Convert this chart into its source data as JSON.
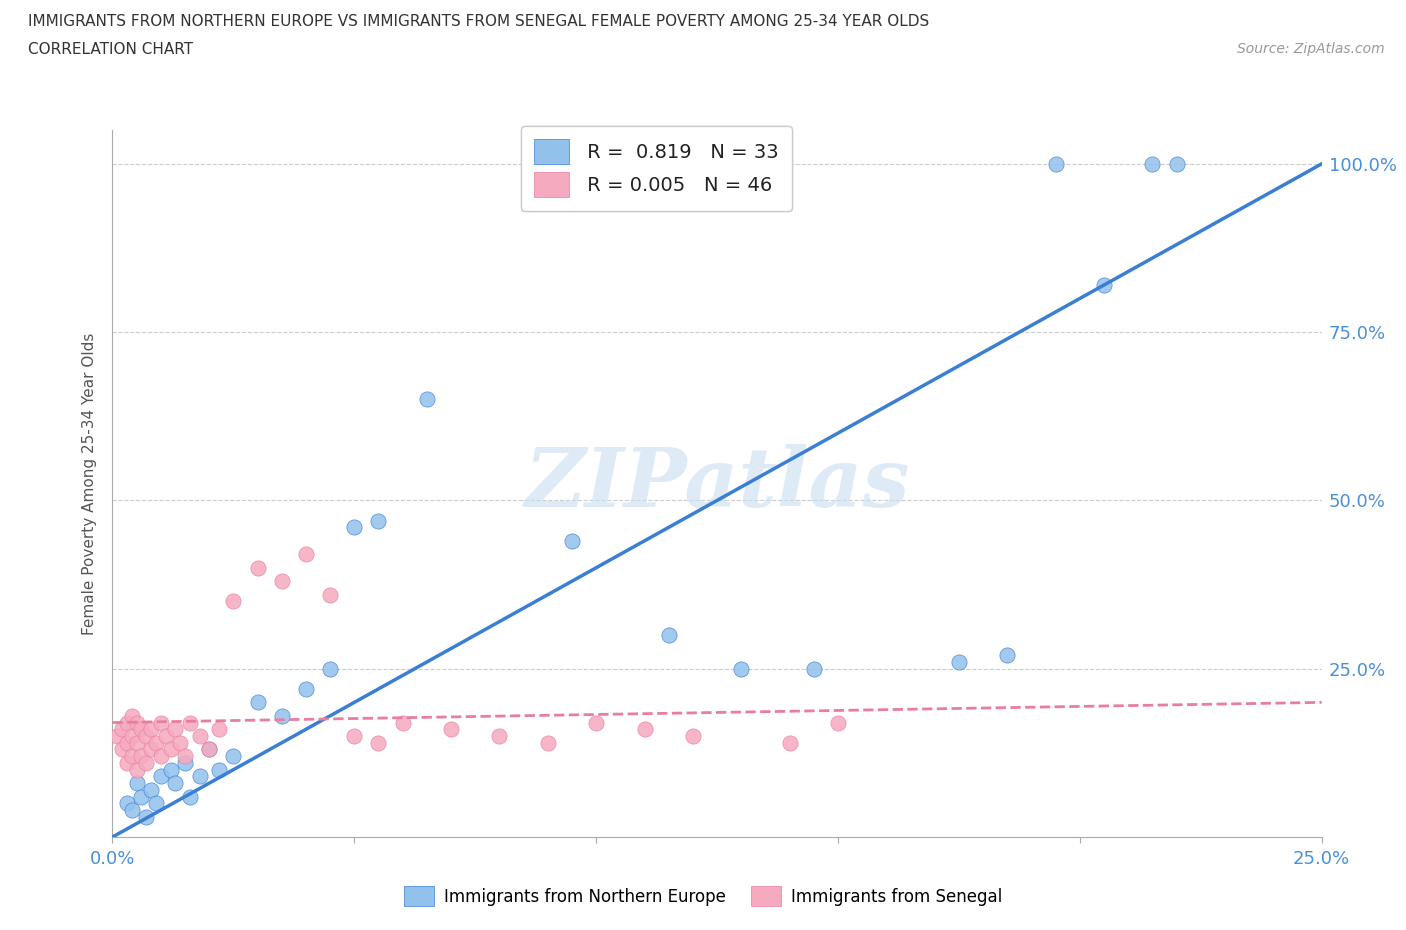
{
  "title_line1": "IMMIGRANTS FROM NORTHERN EUROPE VS IMMIGRANTS FROM SENEGAL FEMALE POVERTY AMONG 25-34 YEAR OLDS",
  "title_line2": "CORRELATION CHART",
  "source_text": "Source: ZipAtlas.com",
  "ylabel": "Female Poverty Among 25-34 Year Olds",
  "xlim": [
    0.0,
    0.25
  ],
  "ylim": [
    0.0,
    1.05
  ],
  "x_tick_positions": [
    0.0,
    0.05,
    0.1,
    0.15,
    0.2,
    0.25
  ],
  "x_tick_labels": [
    "0.0%",
    "",
    "",
    "",
    "",
    "25.0%"
  ],
  "y_tick_positions": [
    0.0,
    0.25,
    0.5,
    0.75,
    1.0
  ],
  "y_tick_labels_right": [
    "",
    "25.0%",
    "50.0%",
    "75.0%",
    "100.0%"
  ],
  "blue_R": "0.819",
  "blue_N": "33",
  "pink_R": "0.005",
  "pink_N": "46",
  "blue_color": "#92C1EC",
  "pink_color": "#F5AABF",
  "blue_line_color": "#3A7FD4",
  "pink_line_color": "#E87DA0",
  "watermark_text": "ZIPatlas",
  "grid_color": "#CCCCCC",
  "blue_scatter_x": [
    0.003,
    0.004,
    0.005,
    0.006,
    0.007,
    0.008,
    0.009,
    0.01,
    0.012,
    0.013,
    0.015,
    0.016,
    0.018,
    0.02,
    0.022,
    0.025,
    0.03,
    0.035,
    0.04,
    0.045,
    0.05,
    0.055,
    0.065,
    0.095,
    0.115,
    0.13,
    0.145,
    0.175,
    0.185,
    0.195,
    0.205,
    0.215,
    0.22
  ],
  "blue_scatter_y": [
    0.05,
    0.04,
    0.08,
    0.06,
    0.03,
    0.07,
    0.05,
    0.09,
    0.1,
    0.08,
    0.11,
    0.06,
    0.09,
    0.13,
    0.1,
    0.12,
    0.2,
    0.18,
    0.22,
    0.25,
    0.46,
    0.47,
    0.65,
    0.44,
    0.3,
    0.25,
    0.25,
    0.26,
    0.27,
    1.0,
    0.82,
    1.0,
    1.0
  ],
  "pink_scatter_x": [
    0.001,
    0.002,
    0.002,
    0.003,
    0.003,
    0.003,
    0.004,
    0.004,
    0.004,
    0.005,
    0.005,
    0.005,
    0.006,
    0.006,
    0.007,
    0.007,
    0.008,
    0.008,
    0.009,
    0.01,
    0.01,
    0.011,
    0.012,
    0.013,
    0.014,
    0.015,
    0.016,
    0.018,
    0.02,
    0.022,
    0.025,
    0.03,
    0.035,
    0.04,
    0.045,
    0.05,
    0.055,
    0.06,
    0.07,
    0.08,
    0.09,
    0.1,
    0.11,
    0.12,
    0.14,
    0.15
  ],
  "pink_scatter_y": [
    0.15,
    0.13,
    0.16,
    0.11,
    0.14,
    0.17,
    0.12,
    0.15,
    0.18,
    0.1,
    0.14,
    0.17,
    0.12,
    0.16,
    0.11,
    0.15,
    0.13,
    0.16,
    0.14,
    0.12,
    0.17,
    0.15,
    0.13,
    0.16,
    0.14,
    0.12,
    0.17,
    0.15,
    0.13,
    0.16,
    0.35,
    0.4,
    0.38,
    0.42,
    0.36,
    0.15,
    0.14,
    0.17,
    0.16,
    0.15,
    0.14,
    0.17,
    0.16,
    0.15,
    0.14,
    0.17
  ],
  "blue_line_x": [
    0.0,
    0.25
  ],
  "blue_line_y": [
    0.0,
    1.0
  ],
  "pink_line_x": [
    0.0,
    0.25
  ],
  "pink_line_y": [
    0.17,
    0.2
  ]
}
